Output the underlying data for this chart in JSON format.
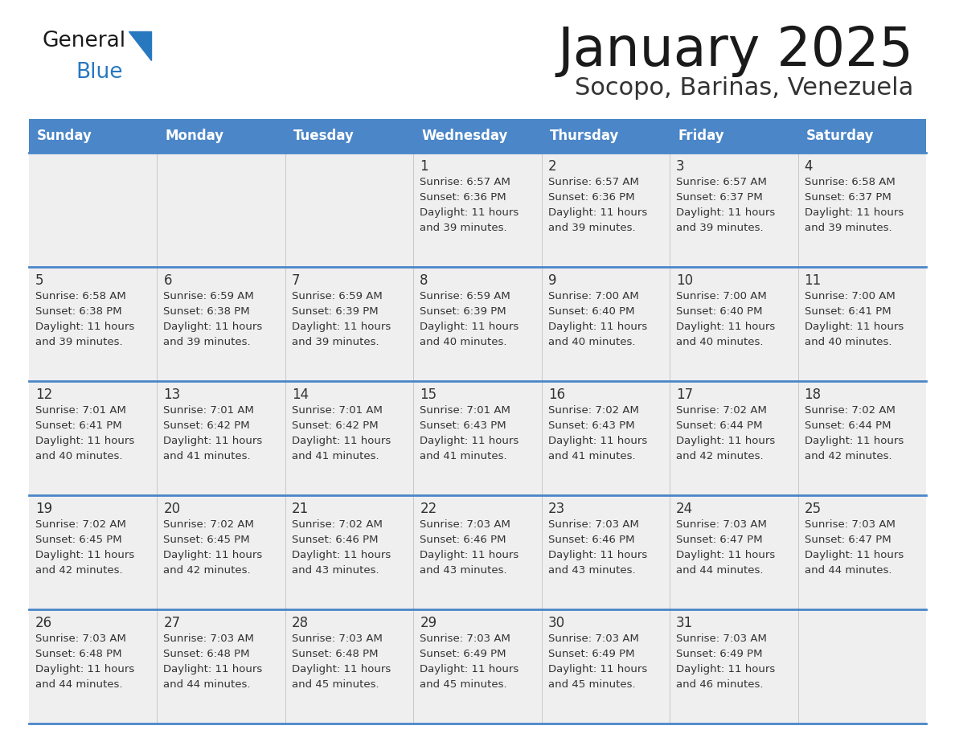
{
  "title": "January 2025",
  "subtitle": "Socopo, Barinas, Venezuela",
  "days_of_week": [
    "Sunday",
    "Monday",
    "Tuesday",
    "Wednesday",
    "Thursday",
    "Friday",
    "Saturday"
  ],
  "header_bg": "#4a86c8",
  "header_text_color": "#ffffff",
  "cell_bg_gray": "#efefef",
  "cell_bg_white": "#ffffff",
  "row_separator_color": "#4a86c8",
  "text_color": "#333333",
  "title_color": "#1a1a1a",
  "subtitle_color": "#333333",
  "logo_general_color": "#1a1a1a",
  "logo_blue_color": "#2878c0",
  "calendar": [
    [
      null,
      null,
      null,
      {
        "day": 1,
        "sunrise": "6:57 AM",
        "sunset": "6:36 PM",
        "daylight_h": "11 hours",
        "daylight_m": "39 minutes"
      },
      {
        "day": 2,
        "sunrise": "6:57 AM",
        "sunset": "6:36 PM",
        "daylight_h": "11 hours",
        "daylight_m": "39 minutes"
      },
      {
        "day": 3,
        "sunrise": "6:57 AM",
        "sunset": "6:37 PM",
        "daylight_h": "11 hours",
        "daylight_m": "39 minutes"
      },
      {
        "day": 4,
        "sunrise": "6:58 AM",
        "sunset": "6:37 PM",
        "daylight_h": "11 hours",
        "daylight_m": "39 minutes"
      }
    ],
    [
      {
        "day": 5,
        "sunrise": "6:58 AM",
        "sunset": "6:38 PM",
        "daylight_h": "11 hours",
        "daylight_m": "39 minutes"
      },
      {
        "day": 6,
        "sunrise": "6:59 AM",
        "sunset": "6:38 PM",
        "daylight_h": "11 hours",
        "daylight_m": "39 minutes"
      },
      {
        "day": 7,
        "sunrise": "6:59 AM",
        "sunset": "6:39 PM",
        "daylight_h": "11 hours",
        "daylight_m": "39 minutes"
      },
      {
        "day": 8,
        "sunrise": "6:59 AM",
        "sunset": "6:39 PM",
        "daylight_h": "11 hours",
        "daylight_m": "40 minutes"
      },
      {
        "day": 9,
        "sunrise": "7:00 AM",
        "sunset": "6:40 PM",
        "daylight_h": "11 hours",
        "daylight_m": "40 minutes"
      },
      {
        "day": 10,
        "sunrise": "7:00 AM",
        "sunset": "6:40 PM",
        "daylight_h": "11 hours",
        "daylight_m": "40 minutes"
      },
      {
        "day": 11,
        "sunrise": "7:00 AM",
        "sunset": "6:41 PM",
        "daylight_h": "11 hours",
        "daylight_m": "40 minutes"
      }
    ],
    [
      {
        "day": 12,
        "sunrise": "7:01 AM",
        "sunset": "6:41 PM",
        "daylight_h": "11 hours",
        "daylight_m": "40 minutes"
      },
      {
        "day": 13,
        "sunrise": "7:01 AM",
        "sunset": "6:42 PM",
        "daylight_h": "11 hours",
        "daylight_m": "41 minutes"
      },
      {
        "day": 14,
        "sunrise": "7:01 AM",
        "sunset": "6:42 PM",
        "daylight_h": "11 hours",
        "daylight_m": "41 minutes"
      },
      {
        "day": 15,
        "sunrise": "7:01 AM",
        "sunset": "6:43 PM",
        "daylight_h": "11 hours",
        "daylight_m": "41 minutes"
      },
      {
        "day": 16,
        "sunrise": "7:02 AM",
        "sunset": "6:43 PM",
        "daylight_h": "11 hours",
        "daylight_m": "41 minutes"
      },
      {
        "day": 17,
        "sunrise": "7:02 AM",
        "sunset": "6:44 PM",
        "daylight_h": "11 hours",
        "daylight_m": "42 minutes"
      },
      {
        "day": 18,
        "sunrise": "7:02 AM",
        "sunset": "6:44 PM",
        "daylight_h": "11 hours",
        "daylight_m": "42 minutes"
      }
    ],
    [
      {
        "day": 19,
        "sunrise": "7:02 AM",
        "sunset": "6:45 PM",
        "daylight_h": "11 hours",
        "daylight_m": "42 minutes"
      },
      {
        "day": 20,
        "sunrise": "7:02 AM",
        "sunset": "6:45 PM",
        "daylight_h": "11 hours",
        "daylight_m": "42 minutes"
      },
      {
        "day": 21,
        "sunrise": "7:02 AM",
        "sunset": "6:46 PM",
        "daylight_h": "11 hours",
        "daylight_m": "43 minutes"
      },
      {
        "day": 22,
        "sunrise": "7:03 AM",
        "sunset": "6:46 PM",
        "daylight_h": "11 hours",
        "daylight_m": "43 minutes"
      },
      {
        "day": 23,
        "sunrise": "7:03 AM",
        "sunset": "6:46 PM",
        "daylight_h": "11 hours",
        "daylight_m": "43 minutes"
      },
      {
        "day": 24,
        "sunrise": "7:03 AM",
        "sunset": "6:47 PM",
        "daylight_h": "11 hours",
        "daylight_m": "44 minutes"
      },
      {
        "day": 25,
        "sunrise": "7:03 AM",
        "sunset": "6:47 PM",
        "daylight_h": "11 hours",
        "daylight_m": "44 minutes"
      }
    ],
    [
      {
        "day": 26,
        "sunrise": "7:03 AM",
        "sunset": "6:48 PM",
        "daylight_h": "11 hours",
        "daylight_m": "44 minutes"
      },
      {
        "day": 27,
        "sunrise": "7:03 AM",
        "sunset": "6:48 PM",
        "daylight_h": "11 hours",
        "daylight_m": "44 minutes"
      },
      {
        "day": 28,
        "sunrise": "7:03 AM",
        "sunset": "6:48 PM",
        "daylight_h": "11 hours",
        "daylight_m": "45 minutes"
      },
      {
        "day": 29,
        "sunrise": "7:03 AM",
        "sunset": "6:49 PM",
        "daylight_h": "11 hours",
        "daylight_m": "45 minutes"
      },
      {
        "day": 30,
        "sunrise": "7:03 AM",
        "sunset": "6:49 PM",
        "daylight_h": "11 hours",
        "daylight_m": "45 minutes"
      },
      {
        "day": 31,
        "sunrise": "7:03 AM",
        "sunset": "6:49 PM",
        "daylight_h": "11 hours",
        "daylight_m": "46 minutes"
      },
      null
    ]
  ]
}
